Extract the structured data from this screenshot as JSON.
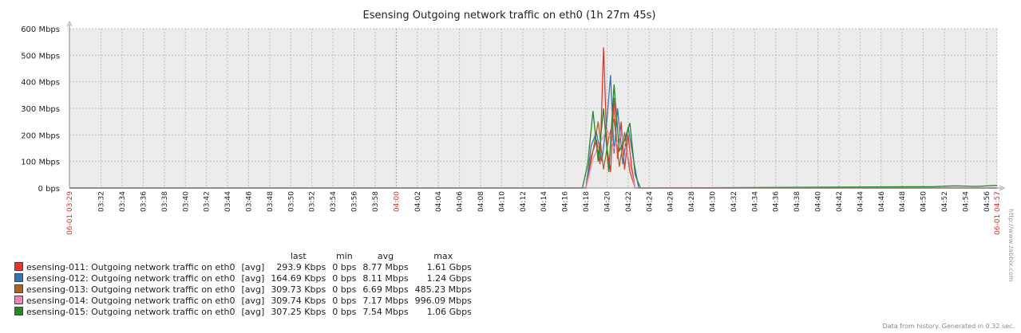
{
  "chart_data": {
    "type": "line",
    "title": "Esensing Outgoing network traffic on eth0 (1h 27m 45s)",
    "y_ticks": [
      "0 bps",
      "100 Mbps",
      "200 Mbps",
      "300 Mbps",
      "400 Mbps",
      "500 Mbps",
      "600 Mbps"
    ],
    "ylim": [
      0,
      600
    ],
    "y_unit": "Mbps",
    "x_start_label": "06-01 03:29",
    "x_end_label": "06-01 04:57",
    "x_major_label": "04:00",
    "x_ticks": [
      "03:32",
      "03:34",
      "03:36",
      "03:38",
      "03:40",
      "03:42",
      "03:44",
      "03:46",
      "03:48",
      "03:50",
      "03:52",
      "03:54",
      "03:56",
      "03:58",
      "04:02",
      "04:04",
      "04:06",
      "04:08",
      "04:10",
      "04:12",
      "04:14",
      "04:16",
      "04:18",
      "04:20",
      "04:22",
      "04:24",
      "04:26",
      "04:28",
      "04:30",
      "04:32",
      "04:34",
      "04:36",
      "04:38",
      "04:40",
      "04:42",
      "04:44",
      "04:46",
      "04:48",
      "04:50",
      "04:52",
      "04:54",
      "04:56"
    ],
    "grid": true,
    "series": [
      {
        "name": "esensing-011: Outgoing network traffic on eth0",
        "color": "#ee3322",
        "x": [
          "04:18:00",
          "04:18:30",
          "04:19:00",
          "04:19:20",
          "04:19:40",
          "04:20:00",
          "04:20:20",
          "04:20:40",
          "04:21:00",
          "04:21:20",
          "04:21:40",
          "04:22:00",
          "04:22:20",
          "04:22:40"
        ],
        "values": [
          0,
          120,
          180,
          90,
          530,
          150,
          60,
          340,
          110,
          250,
          70,
          200,
          80,
          0
        ]
      },
      {
        "name": "esensing-012: Outgoing network traffic on eth0",
        "color": "#3377bb",
        "x": [
          "04:18:00",
          "04:18:30",
          "04:19:00",
          "04:19:30",
          "04:20:00",
          "04:20:20",
          "04:20:40",
          "04:21:00",
          "04:21:30",
          "04:22:00",
          "04:22:30",
          "04:23:00"
        ],
        "values": [
          0,
          160,
          210,
          100,
          260,
          425,
          130,
          300,
          90,
          230,
          110,
          0
        ]
      },
      {
        "name": "esensing-013: Outgoing network traffic on eth0",
        "color": "#aa6622",
        "x": [
          "04:18:00",
          "04:18:40",
          "04:19:10",
          "04:19:40",
          "04:20:10",
          "04:20:40",
          "04:21:10",
          "04:21:40",
          "04:22:10",
          "04:22:40"
        ],
        "values": [
          0,
          140,
          250,
          70,
          190,
          260,
          80,
          210,
          60,
          0
        ]
      },
      {
        "name": "esensing-014: Outgoing network traffic on eth0",
        "color": "#ee88bb",
        "x": [
          "04:18:00",
          "04:18:40",
          "04:19:20",
          "04:20:00",
          "04:20:40",
          "04:21:20",
          "04:22:00",
          "04:22:40"
        ],
        "values": [
          0,
          110,
          170,
          220,
          150,
          200,
          120,
          0
        ]
      },
      {
        "name": "esensing-015: Outgoing network traffic on eth0",
        "color": "#228822",
        "x": [
          "04:17:40",
          "04:18:10",
          "04:18:40",
          "04:19:10",
          "04:19:40",
          "04:20:10",
          "04:20:40",
          "04:21:10",
          "04:21:40",
          "04:22:10",
          "04:22:40",
          "04:23:10",
          "04:51:00",
          "04:53:00",
          "04:55:00",
          "04:57:00"
        ],
        "values": [
          0,
          90,
          290,
          100,
          300,
          60,
          390,
          140,
          180,
          245,
          50,
          0,
          5,
          8,
          6,
          10
        ]
      }
    ]
  },
  "legend": {
    "headers": {
      "last": "last",
      "min": "min",
      "avg": "avg",
      "max": "max"
    },
    "rows": [
      {
        "name": "esensing-011: Outgoing network traffic on eth0",
        "color": "#ee3322",
        "func": "[avg]",
        "last": "293.9 Kbps",
        "min": "0 bps",
        "avg": "8.77 Mbps",
        "max": "1.61 Gbps"
      },
      {
        "name": "esensing-012: Outgoing network traffic on eth0",
        "color": "#3377bb",
        "func": "[avg]",
        "last": "164.69 Kbps",
        "min": "0 bps",
        "avg": "8.11 Mbps",
        "max": "1.24 Gbps"
      },
      {
        "name": "esensing-013: Outgoing network traffic on eth0",
        "color": "#aa6622",
        "func": "[avg]",
        "last": "309.73 Kbps",
        "min": "0 bps",
        "avg": "6.69 Mbps",
        "max": "485.23 Mbps"
      },
      {
        "name": "esensing-014: Outgoing network traffic on eth0",
        "color": "#ee88bb",
        "func": "[avg]",
        "last": "309.74 Kbps",
        "min": "0 bps",
        "avg": "7.17 Mbps",
        "max": "996.09 Mbps"
      },
      {
        "name": "esensing-015: Outgoing network traffic on eth0",
        "color": "#228822",
        "func": "[avg]",
        "last": "307.25 Kbps",
        "min": "0 bps",
        "avg": "7.54 Mbps",
        "max": "1.06 Gbps"
      }
    ]
  },
  "footer": "Data from history. Generated in 0.32 sec.",
  "watermark": "http://www.zabbix.com"
}
